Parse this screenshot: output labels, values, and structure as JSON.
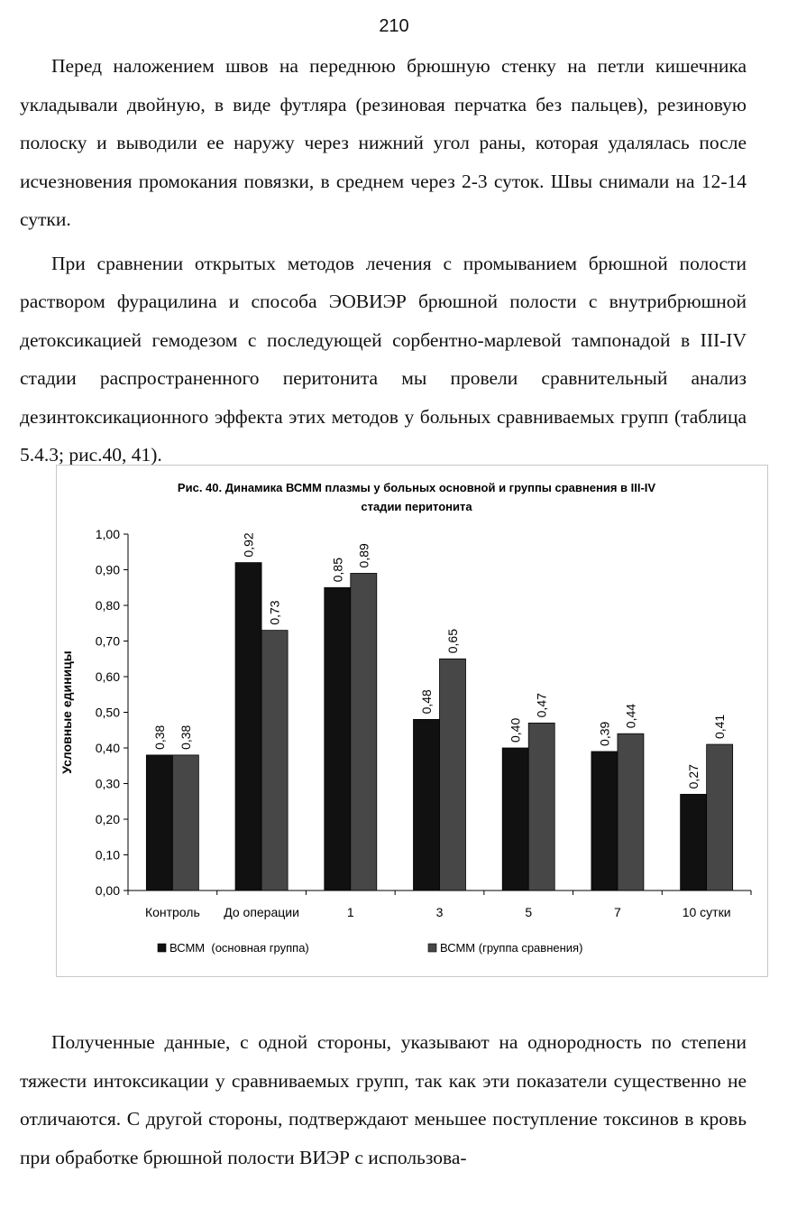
{
  "page_number": "210",
  "paragraphs_top": [
    "Перед наложением швов на переднюю брюшную стенку на петли кишечника укладывали двойную, в виде футляра (резиновая перчатка без пальцев), резиновую полоску и выводили ее наружу через нижний угол раны, которая удалялась после исчезновения промокания повязки, в среднем через 2-3 суток. Швы снимали на 12-14 сутки.",
    "При сравнении открытых методов лечения с промыванием брюшной полости раствором фурацилина и способа ЭОВИЭР брюшной полости с внутрибрюшной детоксикацией гемодезом с последующей сорбентно-марлевой тампонадой в III-IV стадии распространенного перитонита мы провели сравнительный анализ дезинтоксикационного эффекта этих методов у больных сравниваемых групп (таблица 5.4.3; рис.40, 41)."
  ],
  "paragraph_bottom": "Полученные данные, с одной стороны, указывают на однородность по степени тяжести интоксикации у сравниваемых групп, так как эти показатели существенно не отличаются. С другой стороны, подтверждают меньшее поступление токсинов в кровь при обработке брюшной полости ВИЭР с использова-",
  "chart_data": {
    "type": "bar",
    "title": "Рис. 40. Динамика ВСММ плазмы у больных основной и группы сравнения в III-IV стадии перитонита",
    "ylabel": "Условные единицы",
    "xlabel": "",
    "categories": [
      "Контроль",
      "До операции",
      "1",
      "3",
      "5",
      "7",
      "10 сутки"
    ],
    "series": [
      {
        "name": "ВСММ  (основная группа)",
        "color": "#111111",
        "values": [
          0.38,
          0.92,
          0.85,
          0.48,
          0.4,
          0.39,
          0.27
        ]
      },
      {
        "name": "ВСММ (группа сравнения)",
        "color": "#474747",
        "values": [
          0.38,
          0.73,
          0.89,
          0.65,
          0.47,
          0.44,
          0.41
        ]
      }
    ],
    "ylim": [
      0,
      1.0
    ],
    "yticks": [
      "0,00",
      "0,10",
      "0,20",
      "0,30",
      "0,40",
      "0,50",
      "0,60",
      "0,70",
      "0,80",
      "0,90",
      "1,00"
    ],
    "grid": false,
    "legend_position": "bottom",
    "data_labels": true
  }
}
